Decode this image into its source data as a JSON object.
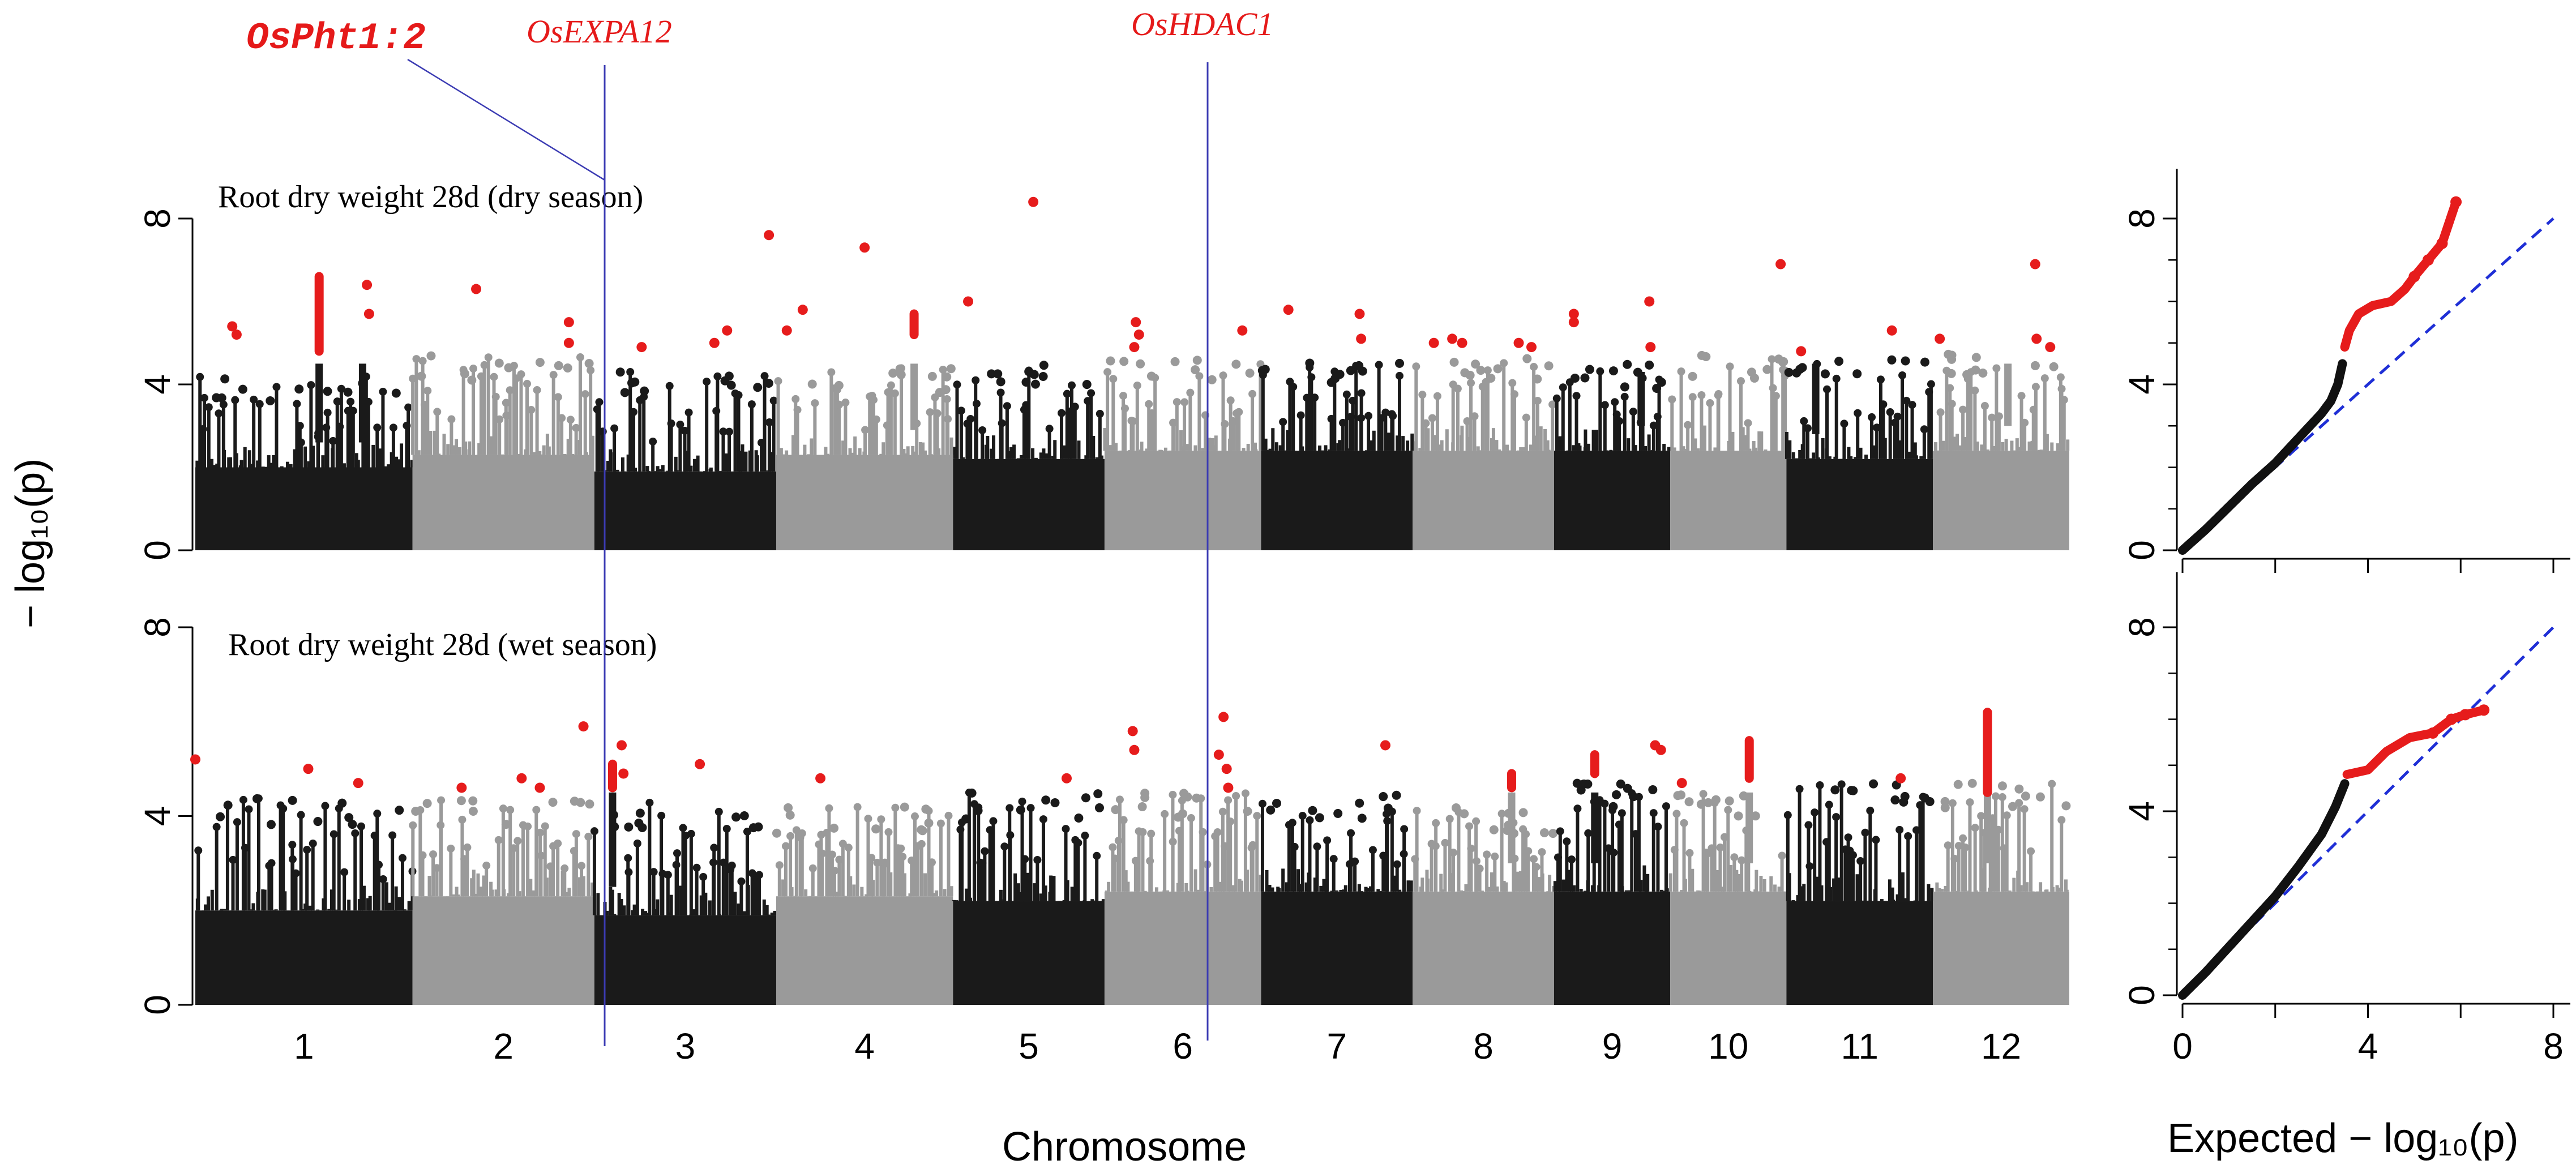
{
  "colors": {
    "dark": "#1a1a1a",
    "light": "#9a9a9a",
    "sig": "#e61c1c",
    "marker": "#3b3bb3",
    "diag": "#1f2fd6"
  },
  "gene_labels": {
    "pht": "OsPht1:2",
    "expa": "OsEXPA12",
    "hdac": "OsHDAC1"
  },
  "axes": {
    "ylabel": "− log₁₀(p)",
    "xlabel": "Chromosome",
    "qq_xlabel": "Expected − log₁₀(p)"
  },
  "chart_data": [
    {
      "type": "scatter",
      "subtype": "manhattan",
      "title": "Root dry weight 28d (dry season)",
      "xlabel": "Chromosome",
      "ylabel": "− log10(p)",
      "ylim": [
        0,
        9
      ],
      "yticks": [
        0,
        4,
        8
      ],
      "categories": [
        "1",
        "2",
        "3",
        "4",
        "5",
        "6",
        "7",
        "8",
        "9",
        "10",
        "11",
        "12"
      ],
      "chrom_length": [
        43,
        36,
        36,
        35,
        30,
        31,
        30,
        28,
        23,
        23,
        29,
        27
      ],
      "base_level": [
        2.6,
        2.9,
        2.5,
        2.9,
        2.8,
        3.0,
        3.0,
        3.0,
        3.0,
        3.0,
        2.8,
        3.0
      ],
      "base_top": [
        4.0,
        4.5,
        4.2,
        4.2,
        4.3,
        4.5,
        4.4,
        4.5,
        4.3,
        4.5,
        4.5,
        4.6
      ],
      "peaks": [
        {
          "chr": 1,
          "pos": 0.57,
          "h": 6.6
        },
        {
          "chr": 1,
          "pos": 0.77,
          "h": 4.8
        },
        {
          "chr": 4,
          "pos": 0.78,
          "h": 5.7
        },
        {
          "chr": 9,
          "pos": 0.75,
          "h": 4.3
        },
        {
          "chr": 12,
          "pos": 0.55,
          "h": 4.6
        },
        {
          "chr": 11,
          "pos": 0.2,
          "h": 4.5
        }
      ],
      "significant": [
        {
          "chr": 1,
          "pos": 0.57,
          "y": 4.8,
          "y2": 6.6
        },
        {
          "chr": 1,
          "pos": 0.17,
          "y": 5.4
        },
        {
          "chr": 1,
          "pos": 0.19,
          "y": 5.2
        },
        {
          "chr": 1,
          "pos": 0.79,
          "y": 6.4
        },
        {
          "chr": 1,
          "pos": 0.8,
          "y": 5.7
        },
        {
          "chr": 2,
          "pos": 0.35,
          "y": 6.3
        },
        {
          "chr": 2,
          "pos": 0.86,
          "y": 5.5
        },
        {
          "chr": 2,
          "pos": 0.86,
          "y": 5.0
        },
        {
          "chr": 3,
          "pos": 0.26,
          "y": 4.9
        },
        {
          "chr": 3,
          "pos": 0.66,
          "y": 5.0
        },
        {
          "chr": 3,
          "pos": 0.73,
          "y": 5.3
        },
        {
          "chr": 3,
          "pos": 0.96,
          "y": 7.6
        },
        {
          "chr": 4,
          "pos": 0.06,
          "y": 5.3
        },
        {
          "chr": 4,
          "pos": 0.15,
          "y": 5.8
        },
        {
          "chr": 4,
          "pos": 0.5,
          "y": 7.3
        },
        {
          "chr": 4,
          "pos": 0.78,
          "y": 5.2,
          "y2": 5.7
        },
        {
          "chr": 5,
          "pos": 0.1,
          "y": 6.0
        },
        {
          "chr": 5,
          "pos": 0.53,
          "y": 8.4
        },
        {
          "chr": 6,
          "pos": 0.2,
          "y": 5.5
        },
        {
          "chr": 6,
          "pos": 0.22,
          "y": 5.2
        },
        {
          "chr": 6,
          "pos": 0.19,
          "y": 4.9
        },
        {
          "chr": 6,
          "pos": 0.88,
          "y": 5.3
        },
        {
          "chr": 7,
          "pos": 0.18,
          "y": 5.8
        },
        {
          "chr": 7,
          "pos": 0.65,
          "y": 5.7
        },
        {
          "chr": 7,
          "pos": 0.66,
          "y": 5.1
        },
        {
          "chr": 8,
          "pos": 0.15,
          "y": 5.0
        },
        {
          "chr": 8,
          "pos": 0.28,
          "y": 5.1
        },
        {
          "chr": 8,
          "pos": 0.35,
          "y": 5.0
        },
        {
          "chr": 8,
          "pos": 0.75,
          "y": 5.0
        },
        {
          "chr": 8,
          "pos": 0.84,
          "y": 4.9
        },
        {
          "chr": 9,
          "pos": 0.17,
          "y": 5.7
        },
        {
          "chr": 9,
          "pos": 0.17,
          "y": 5.5
        },
        {
          "chr": 9,
          "pos": 0.82,
          "y": 6.0
        },
        {
          "chr": 9,
          "pos": 0.83,
          "y": 4.9
        },
        {
          "chr": 10,
          "pos": 0.95,
          "y": 6.9
        },
        {
          "chr": 11,
          "pos": 0.1,
          "y": 4.8
        },
        {
          "chr": 11,
          "pos": 0.72,
          "y": 5.3
        },
        {
          "chr": 12,
          "pos": 0.05,
          "y": 5.1
        },
        {
          "chr": 12,
          "pos": 0.75,
          "y": 6.9
        },
        {
          "chr": 12,
          "pos": 0.76,
          "y": 5.1
        },
        {
          "chr": 12,
          "pos": 0.86,
          "y": 4.9
        }
      ]
    },
    {
      "type": "scatter",
      "subtype": "manhattan",
      "title": "Root dry weight 28d (wet season)",
      "xlabel": "Chromosome",
      "ylabel": "− log10(p)",
      "ylim": [
        0,
        9
      ],
      "yticks": [
        0,
        4,
        8
      ],
      "categories": [
        "1",
        "2",
        "3",
        "4",
        "5",
        "6",
        "7",
        "8",
        "9",
        "10",
        "11",
        "12"
      ],
      "chrom_length": [
        43,
        36,
        36,
        35,
        30,
        31,
        30,
        28,
        23,
        23,
        29,
        27
      ],
      "base_level": [
        2.6,
        2.9,
        2.5,
        2.9,
        2.8,
        3.0,
        3.0,
        3.0,
        3.0,
        3.0,
        2.8,
        3.0
      ],
      "base_top": [
        4.2,
        4.2,
        4.1,
        4.0,
        4.3,
        4.3,
        4.3,
        4.0,
        4.5,
        4.4,
        4.5,
        4.5
      ],
      "peaks": [
        {
          "chr": 3,
          "pos": 0.1,
          "h": 4.6
        },
        {
          "chr": 8,
          "pos": 0.7,
          "h": 4.8
        },
        {
          "chr": 9,
          "pos": 0.35,
          "h": 5.3
        },
        {
          "chr": 10,
          "pos": 0.68,
          "h": 5.6
        },
        {
          "chr": 12,
          "pos": 0.4,
          "h": 6.2
        }
      ],
      "significant": [
        {
          "chr": 1,
          "pos": 0.0,
          "y": 5.2
        },
        {
          "chr": 1,
          "pos": 0.52,
          "y": 5.0
        },
        {
          "chr": 1,
          "pos": 0.75,
          "y": 4.7
        },
        {
          "chr": 2,
          "pos": 0.27,
          "y": 4.6
        },
        {
          "chr": 2,
          "pos": 0.6,
          "y": 4.8
        },
        {
          "chr": 2,
          "pos": 0.7,
          "y": 4.6
        },
        {
          "chr": 2,
          "pos": 0.94,
          "y": 5.9
        },
        {
          "chr": 3,
          "pos": 0.1,
          "y": 4.6,
          "y2": 5.1
        },
        {
          "chr": 3,
          "pos": 0.15,
          "y": 5.5
        },
        {
          "chr": 3,
          "pos": 0.16,
          "y": 4.9
        },
        {
          "chr": 3,
          "pos": 0.58,
          "y": 5.1
        },
        {
          "chr": 4,
          "pos": 0.25,
          "y": 4.8
        },
        {
          "chr": 5,
          "pos": 0.75,
          "y": 4.8
        },
        {
          "chr": 6,
          "pos": 0.18,
          "y": 5.8
        },
        {
          "chr": 6,
          "pos": 0.19,
          "y": 5.4
        },
        {
          "chr": 6,
          "pos": 0.73,
          "y": 5.3
        },
        {
          "chr": 6,
          "pos": 0.76,
          "y": 6.1
        },
        {
          "chr": 6,
          "pos": 0.78,
          "y": 5.0
        },
        {
          "chr": 6,
          "pos": 0.79,
          "y": 4.6
        },
        {
          "chr": 7,
          "pos": 0.82,
          "y": 5.5
        },
        {
          "chr": 8,
          "pos": 0.7,
          "y": 4.6,
          "y2": 4.9
        },
        {
          "chr": 9,
          "pos": 0.35,
          "y": 4.9,
          "y2": 5.3
        },
        {
          "chr": 9,
          "pos": 0.87,
          "y": 5.5
        },
        {
          "chr": 9,
          "pos": 0.92,
          "y": 5.4
        },
        {
          "chr": 10,
          "pos": 0.1,
          "y": 4.7
        },
        {
          "chr": 10,
          "pos": 0.68,
          "y": 4.8,
          "y2": 5.6
        },
        {
          "chr": 11,
          "pos": 0.78,
          "y": 4.8
        },
        {
          "chr": 12,
          "pos": 0.4,
          "y": 4.5,
          "y2": 6.2
        }
      ],
      "markers": [
        {
          "gene": "OsEXPA12",
          "chr": 3,
          "pos": 0.13
        },
        {
          "gene": "OsHDAC1",
          "chr": 6,
          "pos": 0.72
        }
      ]
    },
    {
      "type": "scatter",
      "subtype": "qq",
      "title": "",
      "xlabel": "Expected − log10(p)",
      "ylabel": "",
      "xlim": [
        0,
        8
      ],
      "ylim": [
        0,
        9
      ],
      "xticks": [
        0,
        2,
        4,
        6,
        8
      ],
      "yticks": [
        0,
        4,
        8
      ],
      "observed_black": [
        [
          0,
          0
        ],
        [
          0.5,
          0.5
        ],
        [
          1,
          1.05
        ],
        [
          1.5,
          1.6
        ],
        [
          2,
          2.1
        ],
        [
          2.5,
          2.7
        ],
        [
          3,
          3.3
        ],
        [
          3.2,
          3.6
        ],
        [
          3.35,
          4.0
        ],
        [
          3.45,
          4.5
        ]
      ],
      "observed_red": [
        [
          3.5,
          4.9
        ],
        [
          3.6,
          5.3
        ],
        [
          3.8,
          5.7
        ],
        [
          4.1,
          5.9
        ],
        [
          4.5,
          6.0
        ],
        [
          4.8,
          6.3
        ],
        [
          5.0,
          6.6
        ],
        [
          5.3,
          7.0
        ],
        [
          5.6,
          7.4
        ],
        [
          5.9,
          8.4
        ]
      ]
    },
    {
      "type": "scatter",
      "subtype": "qq",
      "title": "",
      "xlabel": "Expected − log10(p)",
      "ylabel": "",
      "xlim": [
        0,
        8
      ],
      "ylim": [
        0,
        9
      ],
      "xticks": [
        0,
        2,
        4,
        6,
        8
      ],
      "yticks": [
        0,
        4,
        8
      ],
      "observed_black": [
        [
          0,
          0
        ],
        [
          0.5,
          0.5
        ],
        [
          1,
          1.05
        ],
        [
          1.5,
          1.6
        ],
        [
          2,
          2.15
        ],
        [
          2.5,
          2.8
        ],
        [
          3,
          3.5
        ],
        [
          3.3,
          4.1
        ],
        [
          3.5,
          4.6
        ]
      ],
      "observed_red": [
        [
          3.55,
          4.8
        ],
        [
          4.0,
          4.9
        ],
        [
          4.4,
          5.3
        ],
        [
          4.9,
          5.6
        ],
        [
          5.4,
          5.7
        ],
        [
          5.8,
          6.0
        ],
        [
          6.1,
          6.1
        ],
        [
          6.5,
          6.2
        ]
      ]
    }
  ]
}
